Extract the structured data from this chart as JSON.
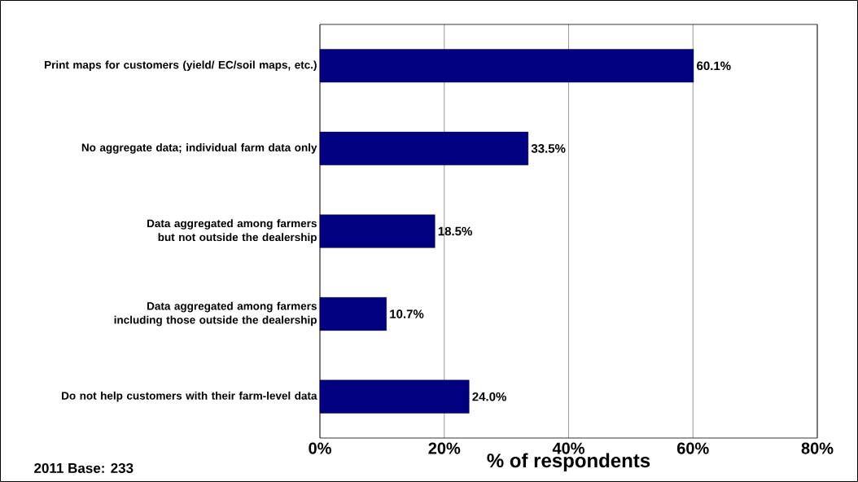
{
  "chart_data": {
    "type": "bar",
    "orientation": "horizontal",
    "xlabel": "% of respondents",
    "categories": [
      "Print maps for customers (yield/ EC/soil maps, etc.)",
      "No aggregate data; individual farm data only",
      "Data aggregated among farmers but not outside the dealership",
      "Data aggregated among farmers including those outside the dealership",
      "Do not help customers with their farm-level data"
    ],
    "values": [
      60.1,
      33.5,
      18.5,
      10.7,
      24.0
    ],
    "value_labels": [
      "60.1%",
      "33.5%",
      "18.5%",
      "10.7%",
      "24.0%"
    ],
    "color": "#000080",
    "xlim": [
      0,
      80
    ],
    "xticks": [
      {
        "value": 0,
        "label": "0%"
      },
      {
        "value": 20,
        "label": "20%"
      },
      {
        "value": 40,
        "label": "40%"
      },
      {
        "value": 60,
        "label": "60%"
      },
      {
        "value": 80,
        "label": "80%"
      }
    ],
    "grid": "x",
    "annotations": [
      "2011 Base: 233"
    ]
  }
}
